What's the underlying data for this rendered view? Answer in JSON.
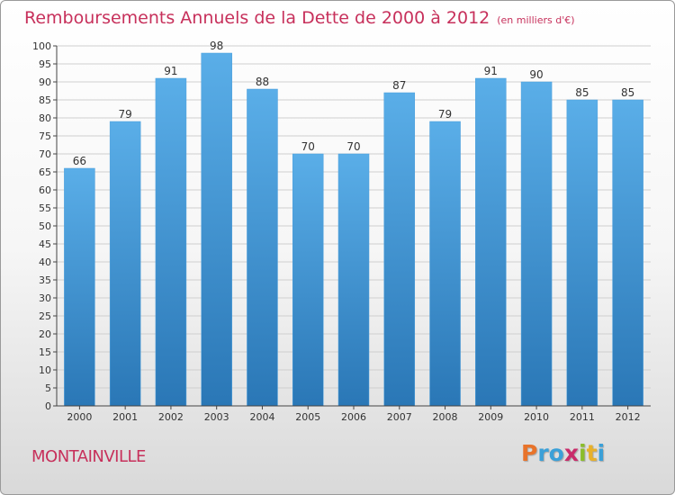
{
  "header": {
    "title": "Remboursements Annuels de la Dette de 2000 à 2012",
    "unit": "(en milliers d'€)"
  },
  "footer": {
    "city": "MONTAINVILLE",
    "logo": "Proxiti",
    "logo_colors": [
      "#e8732a",
      "#3aa0d8",
      "#3aa0d8",
      "#c92b6a",
      "#8bbd2a",
      "#e8b12a",
      "#3aa0d8"
    ]
  },
  "colors": {
    "bar_top": "#5aaee8",
    "bar_bottom": "#2a77b6",
    "grid": "#cfcfcf",
    "axis": "#444444"
  },
  "chart_data": {
    "type": "bar",
    "title": "Remboursements Annuels de la Dette de 2000 à 2012",
    "xlabel": "",
    "ylabel": "",
    "categories": [
      "2000",
      "2001",
      "2002",
      "2003",
      "2004",
      "2005",
      "2006",
      "2007",
      "2008",
      "2009",
      "2010",
      "2011",
      "2012"
    ],
    "values": [
      66,
      79,
      91,
      98,
      88,
      70,
      70,
      87,
      79,
      91,
      90,
      85,
      85
    ],
    "ylim": [
      0,
      100
    ],
    "yticks": [
      0,
      5,
      10,
      15,
      20,
      25,
      30,
      35,
      40,
      45,
      50,
      55,
      60,
      65,
      70,
      75,
      80,
      85,
      90,
      95,
      100
    ],
    "grid": true,
    "data_labels": true
  }
}
